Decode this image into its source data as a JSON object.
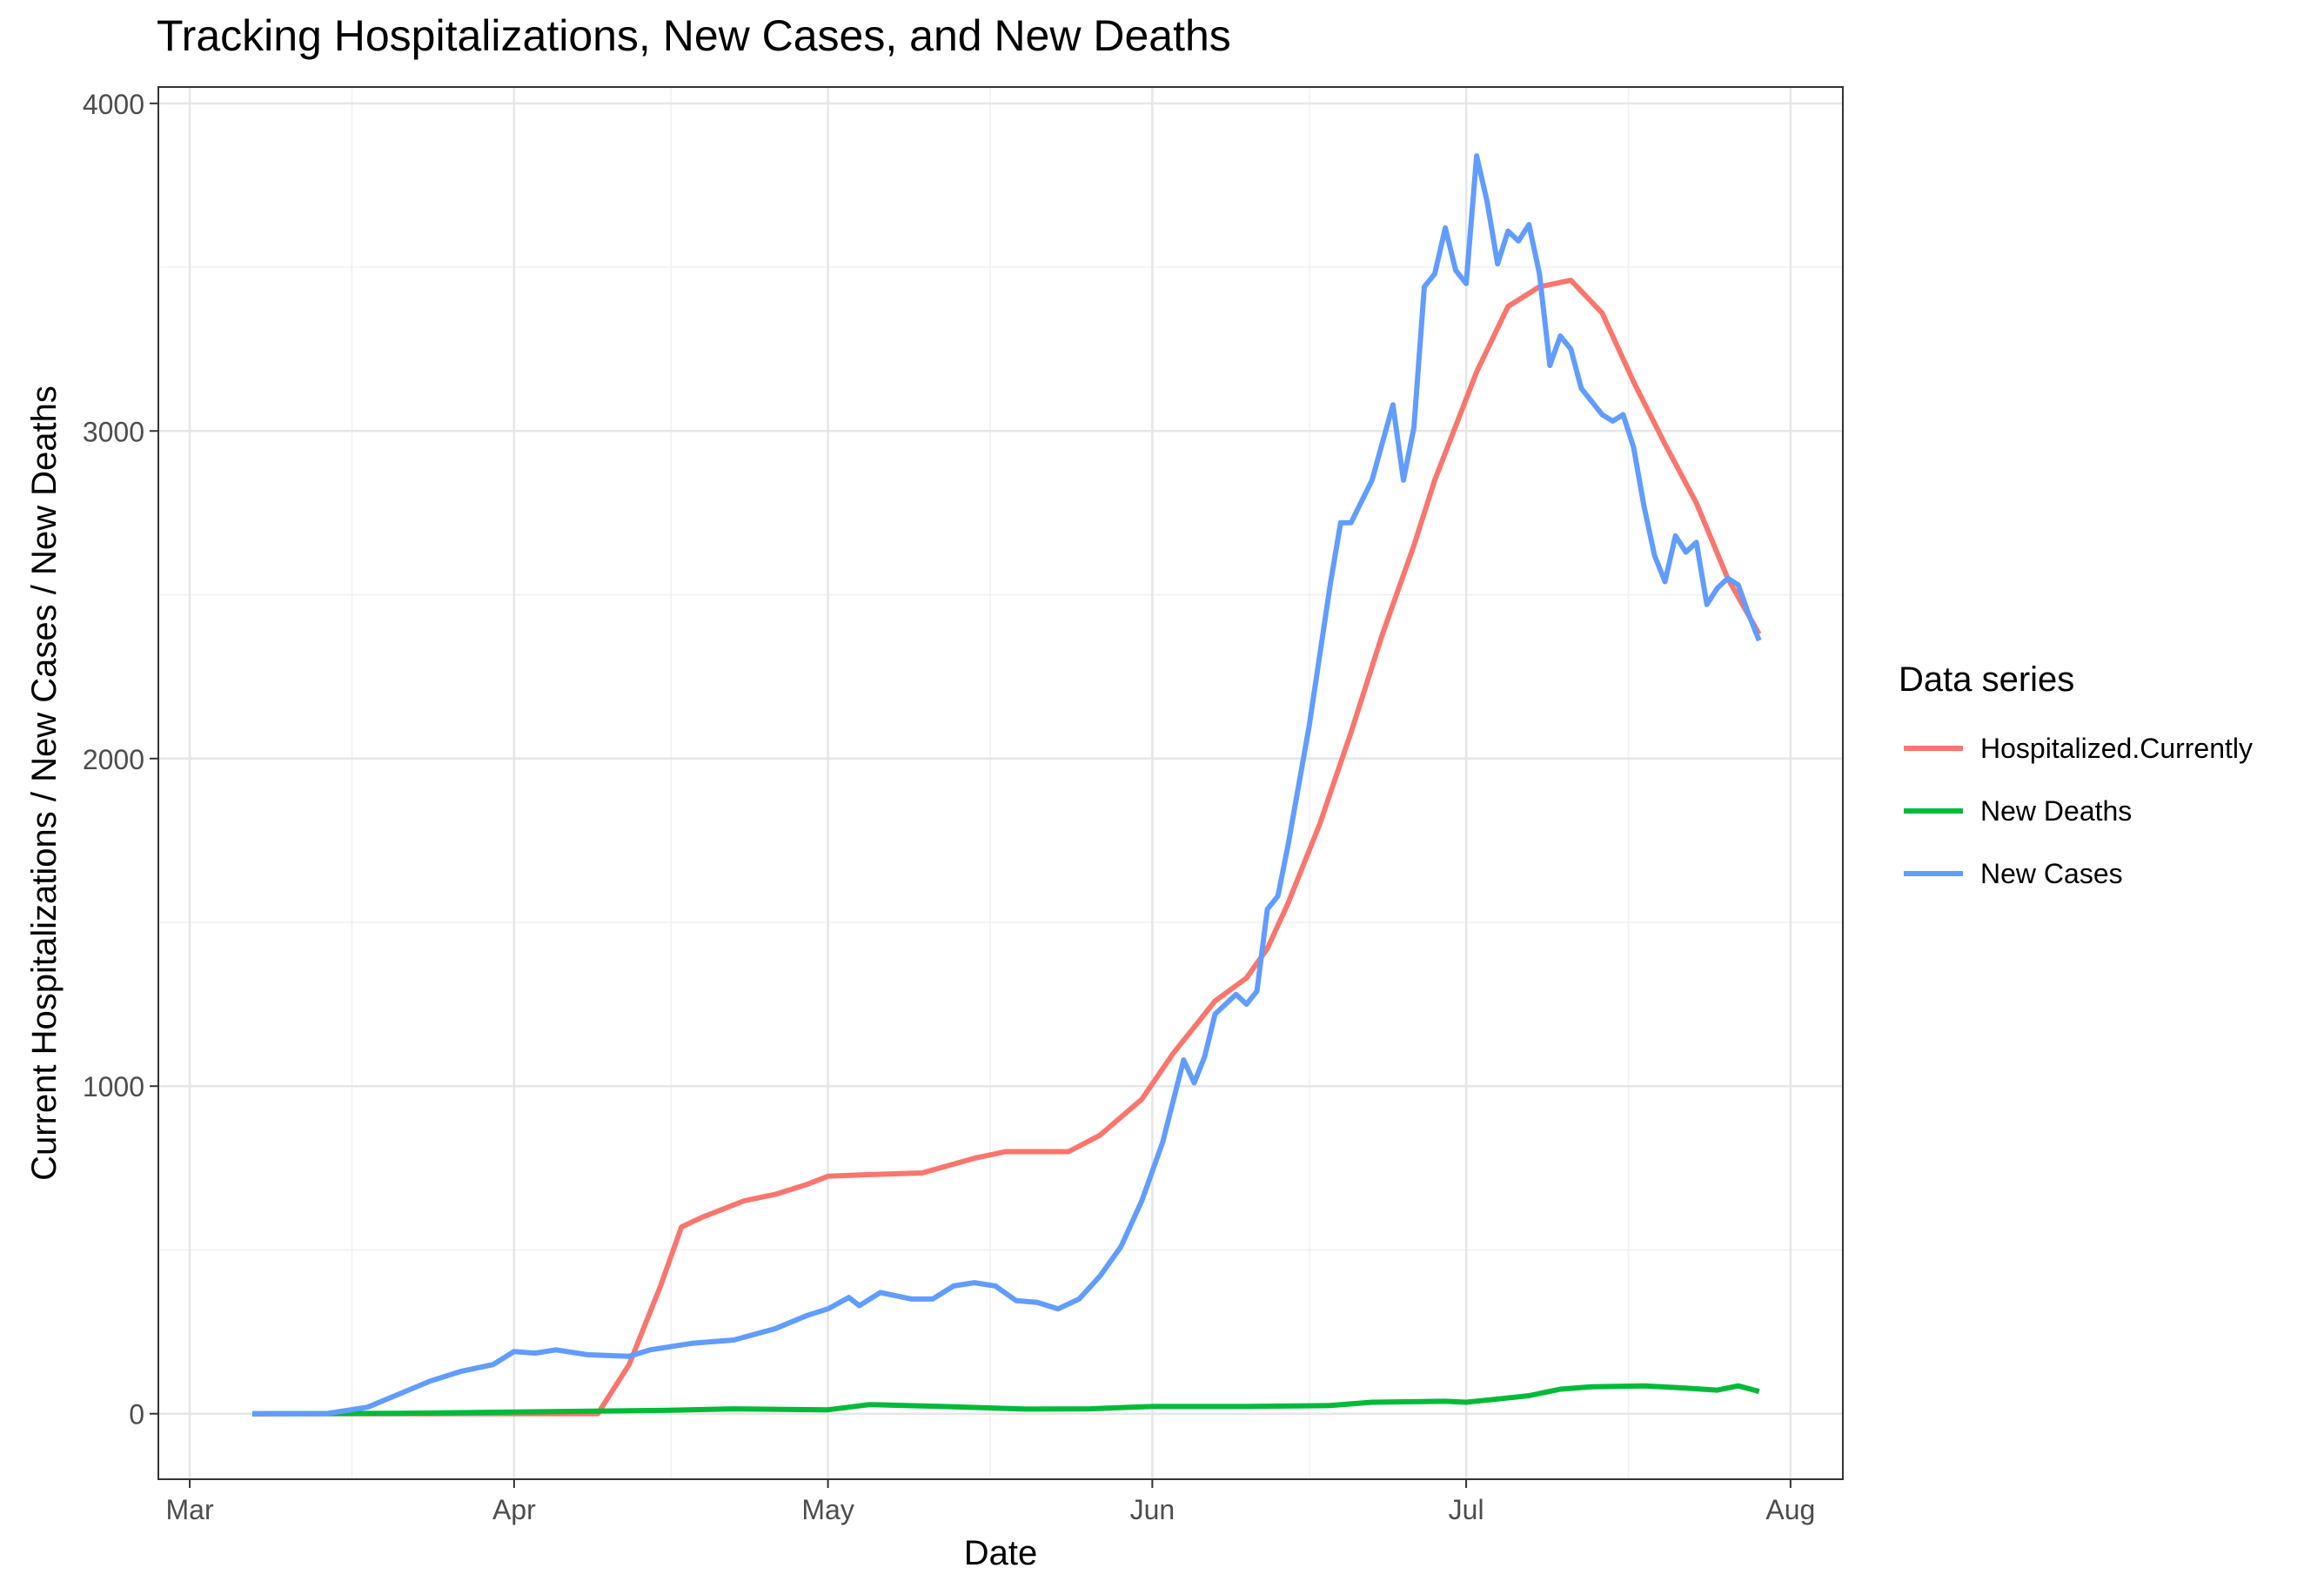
{
  "chart_data": {
    "type": "line",
    "title": "Tracking Hospitalizations, New Cases, and New Deaths",
    "xlabel": "Date",
    "ylabel": "Current Hospitalizations / New Cases / New Deaths",
    "x_ticks": [
      {
        "label": "Mar",
        "date": "2020-03-01"
      },
      {
        "label": "Apr",
        "date": "2020-04-01"
      },
      {
        "label": "May",
        "date": "2020-05-01"
      },
      {
        "label": "Jun",
        "date": "2020-06-01"
      },
      {
        "label": "Jul",
        "date": "2020-07-01"
      },
      {
        "label": "Aug",
        "date": "2020-08-01"
      }
    ],
    "xlim": [
      "2020-02-27",
      "2020-08-06"
    ],
    "y_ticks": [
      0,
      1000,
      2000,
      3000,
      4000
    ],
    "ylim": [
      -200,
      4050
    ],
    "grid": true,
    "legend": {
      "title": "Data series",
      "position": "right"
    },
    "series": [
      {
        "name": "Hospitalized.Currently",
        "color": "#F8766D",
        "points": [
          [
            "2020-03-07",
            0
          ],
          [
            "2020-04-09",
            0
          ],
          [
            "2020-04-12",
            150
          ],
          [
            "2020-04-15",
            390
          ],
          [
            "2020-04-17",
            570
          ],
          [
            "2020-04-19",
            600
          ],
          [
            "2020-04-23",
            650
          ],
          [
            "2020-04-26",
            670
          ],
          [
            "2020-04-29",
            700
          ],
          [
            "2020-05-01",
            725
          ],
          [
            "2020-05-05",
            730
          ],
          [
            "2020-05-10",
            735
          ],
          [
            "2020-05-15",
            780
          ],
          [
            "2020-05-18",
            800
          ],
          [
            "2020-05-24",
            800
          ],
          [
            "2020-05-27",
            850
          ],
          [
            "2020-05-31",
            960
          ],
          [
            "2020-06-03",
            1100
          ],
          [
            "2020-06-07",
            1260
          ],
          [
            "2020-06-10",
            1330
          ],
          [
            "2020-06-12",
            1420
          ],
          [
            "2020-06-14",
            1560
          ],
          [
            "2020-06-17",
            1800
          ],
          [
            "2020-06-20",
            2080
          ],
          [
            "2020-06-23",
            2380
          ],
          [
            "2020-06-26",
            2650
          ],
          [
            "2020-06-28",
            2850
          ],
          [
            "2020-07-02",
            3180
          ],
          [
            "2020-07-05",
            3380
          ],
          [
            "2020-07-08",
            3440
          ],
          [
            "2020-07-11",
            3460
          ],
          [
            "2020-07-14",
            3360
          ],
          [
            "2020-07-17",
            3150
          ],
          [
            "2020-07-20",
            2960
          ],
          [
            "2020-07-23",
            2780
          ],
          [
            "2020-07-26",
            2550
          ],
          [
            "2020-07-29",
            2380
          ]
        ]
      },
      {
        "name": "New Deaths",
        "color": "#00BA38",
        "points": [
          [
            "2020-03-07",
            0
          ],
          [
            "2020-03-21",
            1
          ],
          [
            "2020-04-01",
            5
          ],
          [
            "2020-04-15",
            10
          ],
          [
            "2020-04-22",
            15
          ],
          [
            "2020-05-01",
            12
          ],
          [
            "2020-05-05",
            28
          ],
          [
            "2020-05-12",
            22
          ],
          [
            "2020-05-20",
            14
          ],
          [
            "2020-05-26",
            15
          ],
          [
            "2020-06-01",
            22
          ],
          [
            "2020-06-10",
            22
          ],
          [
            "2020-06-18",
            25
          ],
          [
            "2020-06-22",
            35
          ],
          [
            "2020-06-29",
            38
          ],
          [
            "2020-07-01",
            35
          ],
          [
            "2020-07-04",
            45
          ],
          [
            "2020-07-07",
            55
          ],
          [
            "2020-07-10",
            75
          ],
          [
            "2020-07-13",
            82
          ],
          [
            "2020-07-18",
            85
          ],
          [
            "2020-07-22",
            78
          ],
          [
            "2020-07-25",
            72
          ],
          [
            "2020-07-27",
            85
          ],
          [
            "2020-07-29",
            68
          ]
        ]
      },
      {
        "name": "New Cases",
        "color": "#619CFF",
        "points": [
          [
            "2020-03-07",
            0
          ],
          [
            "2020-03-14",
            0
          ],
          [
            "2020-03-18",
            20
          ],
          [
            "2020-03-21",
            60
          ],
          [
            "2020-03-24",
            100
          ],
          [
            "2020-03-27",
            130
          ],
          [
            "2020-03-30",
            150
          ],
          [
            "2020-04-01",
            190
          ],
          [
            "2020-04-03",
            185
          ],
          [
            "2020-04-05",
            195
          ],
          [
            "2020-04-08",
            180
          ],
          [
            "2020-04-12",
            175
          ],
          [
            "2020-04-14",
            195
          ],
          [
            "2020-04-18",
            215
          ],
          [
            "2020-04-22",
            225
          ],
          [
            "2020-04-26",
            260
          ],
          [
            "2020-04-29",
            300
          ],
          [
            "2020-05-01",
            320
          ],
          [
            "2020-05-03",
            355
          ],
          [
            "2020-05-04",
            330
          ],
          [
            "2020-05-06",
            370
          ],
          [
            "2020-05-09",
            350
          ],
          [
            "2020-05-11",
            350
          ],
          [
            "2020-05-13",
            390
          ],
          [
            "2020-05-15",
            400
          ],
          [
            "2020-05-17",
            390
          ],
          [
            "2020-05-19",
            345
          ],
          [
            "2020-05-21",
            340
          ],
          [
            "2020-05-23",
            320
          ],
          [
            "2020-05-25",
            350
          ],
          [
            "2020-05-27",
            420
          ],
          [
            "2020-05-29",
            510
          ],
          [
            "2020-05-31",
            650
          ],
          [
            "2020-06-02",
            830
          ],
          [
            "2020-06-04",
            1080
          ],
          [
            "2020-06-05",
            1010
          ],
          [
            "2020-06-06",
            1090
          ],
          [
            "2020-06-07",
            1220
          ],
          [
            "2020-06-09",
            1280
          ],
          [
            "2020-06-10",
            1250
          ],
          [
            "2020-06-11",
            1290
          ],
          [
            "2020-06-12",
            1540
          ],
          [
            "2020-06-13",
            1580
          ],
          [
            "2020-06-14",
            1740
          ],
          [
            "2020-06-16",
            2100
          ],
          [
            "2020-06-18",
            2530
          ],
          [
            "2020-06-19",
            2720
          ],
          [
            "2020-06-20",
            2720
          ],
          [
            "2020-06-22",
            2850
          ],
          [
            "2020-06-24",
            3080
          ],
          [
            "2020-06-25",
            2850
          ],
          [
            "2020-06-26",
            3010
          ],
          [
            "2020-06-27",
            3440
          ],
          [
            "2020-06-28",
            3480
          ],
          [
            "2020-06-29",
            3620
          ],
          [
            "2020-06-30",
            3490
          ],
          [
            "2020-07-01",
            3450
          ],
          [
            "2020-07-02",
            3840
          ],
          [
            "2020-07-03",
            3700
          ],
          [
            "2020-07-04",
            3510
          ],
          [
            "2020-07-05",
            3610
          ],
          [
            "2020-07-06",
            3580
          ],
          [
            "2020-07-07",
            3630
          ],
          [
            "2020-07-08",
            3480
          ],
          [
            "2020-07-09",
            3200
          ],
          [
            "2020-07-10",
            3290
          ],
          [
            "2020-07-11",
            3250
          ],
          [
            "2020-07-12",
            3130
          ],
          [
            "2020-07-14",
            3050
          ],
          [
            "2020-07-15",
            3030
          ],
          [
            "2020-07-16",
            3050
          ],
          [
            "2020-07-17",
            2950
          ],
          [
            "2020-07-18",
            2770
          ],
          [
            "2020-07-19",
            2620
          ],
          [
            "2020-07-20",
            2540
          ],
          [
            "2020-07-21",
            2680
          ],
          [
            "2020-07-22",
            2630
          ],
          [
            "2020-07-23",
            2660
          ],
          [
            "2020-07-24",
            2470
          ],
          [
            "2020-07-25",
            2520
          ],
          [
            "2020-07-26",
            2550
          ],
          [
            "2020-07-27",
            2530
          ],
          [
            "2020-07-28",
            2440
          ],
          [
            "2020-07-29",
            2360
          ]
        ]
      }
    ]
  }
}
